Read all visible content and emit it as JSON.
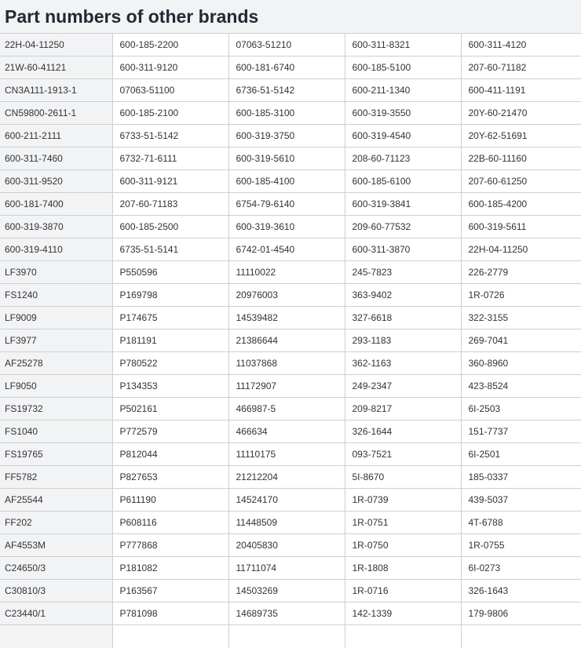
{
  "title": "Part numbers of other brands",
  "rows": [
    [
      "22H-04-11250",
      "600-185-2200",
      "07063-51210",
      "600-311-8321",
      "600-311-4120"
    ],
    [
      "21W-60-41121",
      "600-311-9120",
      "600-181-6740",
      "600-185-5100",
      "207-60-71182"
    ],
    [
      "CN3A111-1913-1",
      "07063-51100",
      "6736-51-5142",
      "600-211-1340",
      "600-411-1191"
    ],
    [
      "CN59800-2611-1",
      "600-185-2100",
      "600-185-3100",
      "600-319-3550",
      "20Y-60-21470"
    ],
    [
      "600-211-2111",
      "6733-51-5142",
      "600-319-3750",
      "600-319-4540",
      "20Y-62-51691"
    ],
    [
      "600-311-7460",
      "6732-71-6111",
      "600-319-5610",
      "208-60-71123",
      "22B-60-11160"
    ],
    [
      "600-311-9520",
      "600-311-9121",
      "600-185-4100",
      "600-185-6100",
      "207-60-61250"
    ],
    [
      "600-181-7400",
      "207-60-71183",
      "6754-79-6140",
      "600-319-3841",
      "600-185-4200"
    ],
    [
      "600-319-3870",
      "600-185-2500",
      "600-319-3610",
      "209-60-77532",
      "600-319-5611"
    ],
    [
      "600-319-4110",
      "6735-51-5141",
      "6742-01-4540",
      "600-311-3870",
      "22H-04-11250"
    ],
    [
      "LF3970",
      "P550596",
      "11110022",
      "245-7823",
      "226-2779"
    ],
    [
      "FS1240",
      "P169798",
      "20976003",
      "363-9402",
      "1R-0726"
    ],
    [
      "LF9009",
      "P174675",
      "14539482",
      "327-6618",
      "322-3155"
    ],
    [
      "LF3977",
      "P181191",
      "21386644",
      "293-1183",
      "269-7041"
    ],
    [
      "AF25278",
      "P780522",
      "11037868",
      "362-1163",
      "360-8960"
    ],
    [
      "LF9050",
      "P134353",
      "11172907",
      "249-2347",
      "423-8524"
    ],
    [
      "FS19732",
      "P502161",
      "466987-5",
      "209-8217",
      "6I-2503"
    ],
    [
      "FS1040",
      "P772579",
      "466634",
      "326-1644",
      "151-7737"
    ],
    [
      "FS19765",
      "P812044",
      "11110175",
      "093-7521",
      "6I-2501"
    ],
    [
      "FF5782",
      "P827653",
      "21212204",
      "5I-8670",
      "185-0337"
    ],
    [
      "AF25544",
      "P611190",
      "14524170",
      "1R-0739",
      "439-5037"
    ],
    [
      "FF202",
      "P608116",
      "11448509",
      "1R-0751",
      "4T-6788"
    ],
    [
      "AF4553M",
      "P777868",
      "20405830",
      "1R-0750",
      "1R-0755"
    ],
    [
      "C24650/3",
      "P181082",
      "11711074",
      "1R-1808",
      "6I-0273"
    ],
    [
      "C30810/3",
      "P163567",
      "14503269",
      "1R-0716",
      "326-1643"
    ],
    [
      "C23440/1",
      "P781098",
      "14689735",
      "142-1339",
      "179-9806"
    ],
    [
      "",
      "",
      "",
      "",
      ""
    ]
  ]
}
